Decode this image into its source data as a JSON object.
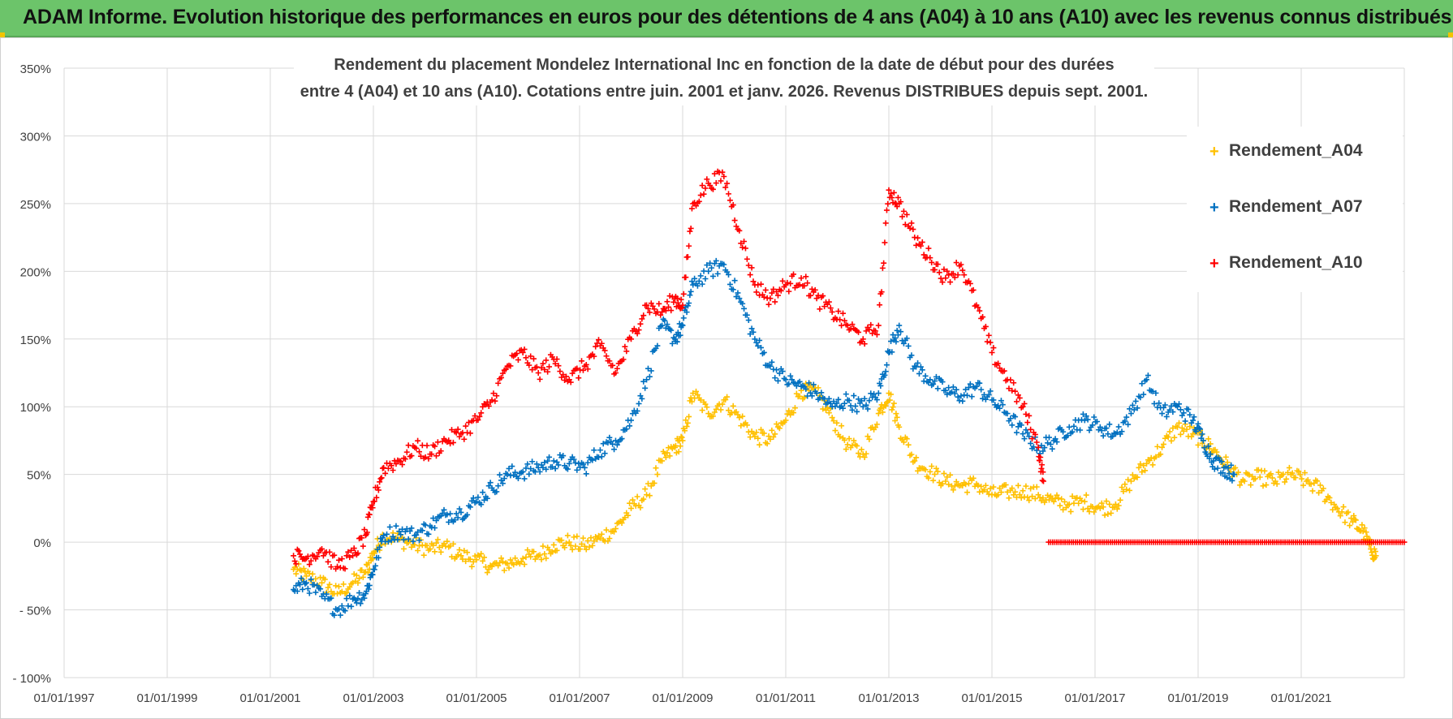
{
  "header": {
    "banner_title": "ADAM Informe. Evolution historique des performances en euros pour des détentions de 4 ans (A04) à 10 ans (A10) avec les revenus connus distribués"
  },
  "colors": {
    "banner_bg": "#6cc46a",
    "a04": "#FFC000",
    "a07": "#0070C0",
    "a10": "#FF0000",
    "grid": "#d9d9d9",
    "axis_text": "#404040"
  },
  "chart_data": {
    "type": "scatter",
    "title_line1": "Rendement du placement Mondelez International Inc en fonction de la date de début pour des durées",
    "title_line2": "entre 4 (A04) et 10 ans (A10).  Cotations entre juin. 2001 et janv. 2026. Revenus DISTRIBUES depuis sept. 2001.",
    "xlabel": "",
    "ylabel": "",
    "x_tick_labels": [
      "01/01/1997",
      "01/01/1999",
      "01/01/2001",
      "01/01/2003",
      "01/01/2005",
      "01/01/2007",
      "01/01/2009",
      "01/01/2011",
      "01/01/2013",
      "01/01/2015",
      "01/01/2017",
      "01/01/2019",
      "01/01/2021"
    ],
    "x_tick_years": [
      1997,
      1999,
      2001,
      2003,
      2005,
      2007,
      2009,
      2011,
      2013,
      2015,
      2017,
      2019,
      2021
    ],
    "xlim": [
      1997.0,
      2023.0
    ],
    "y_tick_labels": [
      "- 100%",
      "- 50%",
      "0%",
      "50%",
      "100%",
      "150%",
      "200%",
      "250%",
      "300%",
      "350%"
    ],
    "y_tick_values": [
      -100,
      -50,
      0,
      50,
      100,
      150,
      200,
      250,
      300,
      350
    ],
    "ylim": [
      -100,
      350
    ],
    "legend_position": "top-right",
    "grid": true,
    "series": [
      {
        "name": "Rendement_A04",
        "key": "a04",
        "points": [
          [
            2001.45,
            -20
          ],
          [
            2001.7,
            -25
          ],
          [
            2002.0,
            -30
          ],
          [
            2002.3,
            -38
          ],
          [
            2002.6,
            -30
          ],
          [
            2002.85,
            -22
          ],
          [
            2003.0,
            -8
          ],
          [
            2003.2,
            5
          ],
          [
            2003.5,
            2
          ],
          [
            2003.8,
            -2
          ],
          [
            2004.1,
            -5
          ],
          [
            2004.4,
            -3
          ],
          [
            2004.7,
            -10
          ],
          [
            2005.0,
            -13
          ],
          [
            2005.3,
            -18
          ],
          [
            2005.6,
            -16
          ],
          [
            2005.9,
            -12
          ],
          [
            2006.2,
            -10
          ],
          [
            2006.5,
            -2
          ],
          [
            2006.8,
            0
          ],
          [
            2007.1,
            -3
          ],
          [
            2007.4,
            3
          ],
          [
            2007.7,
            10
          ],
          [
            2008.0,
            25
          ],
          [
            2008.3,
            35
          ],
          [
            2008.6,
            60
          ],
          [
            2008.85,
            70
          ],
          [
            2009.0,
            75
          ],
          [
            2009.2,
            110
          ],
          [
            2009.5,
            95
          ],
          [
            2009.8,
            105
          ],
          [
            2010.1,
            92
          ],
          [
            2010.4,
            78
          ],
          [
            2010.7,
            76
          ],
          [
            2011.0,
            90
          ],
          [
            2011.3,
            112
          ],
          [
            2011.6,
            110
          ],
          [
            2011.9,
            92
          ],
          [
            2012.2,
            72
          ],
          [
            2012.5,
            65
          ],
          [
            2012.8,
            95
          ],
          [
            2013.0,
            110
          ],
          [
            2013.2,
            85
          ],
          [
            2013.5,
            60
          ],
          [
            2013.8,
            52
          ],
          [
            2014.1,
            45
          ],
          [
            2014.4,
            42
          ],
          [
            2014.7,
            43
          ],
          [
            2015.0,
            35
          ],
          [
            2015.3,
            37
          ],
          [
            2015.6,
            38
          ],
          [
            2015.9,
            35
          ],
          [
            2016.2,
            30
          ],
          [
            2016.5,
            28
          ],
          [
            2016.8,
            30
          ],
          [
            2017.1,
            25
          ],
          [
            2017.4,
            28
          ],
          [
            2017.7,
            45
          ],
          [
            2018.0,
            58
          ],
          [
            2018.3,
            70
          ],
          [
            2018.6,
            85
          ],
          [
            2018.9,
            80
          ],
          [
            2019.1,
            75
          ],
          [
            2019.3,
            68
          ],
          [
            2019.6,
            55
          ],
          [
            2019.9,
            45
          ],
          [
            2020.2,
            48
          ],
          [
            2020.5,
            45
          ],
          [
            2020.8,
            50
          ],
          [
            2021.1,
            45
          ],
          [
            2021.4,
            38
          ],
          [
            2021.7,
            25
          ],
          [
            2022.0,
            15
          ],
          [
            2022.2,
            8
          ],
          [
            2022.35,
            -5
          ],
          [
            2022.45,
            -10
          ]
        ]
      },
      {
        "name": "Rendement_A07",
        "key": "a07",
        "points": [
          [
            2001.45,
            -35
          ],
          [
            2001.7,
            -30
          ],
          [
            2002.0,
            -40
          ],
          [
            2002.3,
            -50
          ],
          [
            2002.6,
            -42
          ],
          [
            2002.85,
            -38
          ],
          [
            2003.0,
            -20
          ],
          [
            2003.2,
            5
          ],
          [
            2003.5,
            8
          ],
          [
            2003.8,
            5
          ],
          [
            2004.1,
            12
          ],
          [
            2004.4,
            20
          ],
          [
            2004.7,
            22
          ],
          [
            2005.0,
            30
          ],
          [
            2005.3,
            40
          ],
          [
            2005.6,
            50
          ],
          [
            2005.9,
            52
          ],
          [
            2006.2,
            55
          ],
          [
            2006.5,
            60
          ],
          [
            2006.8,
            58
          ],
          [
            2007.1,
            55
          ],
          [
            2007.4,
            68
          ],
          [
            2007.7,
            75
          ],
          [
            2008.0,
            90
          ],
          [
            2008.3,
            120
          ],
          [
            2008.6,
            160
          ],
          [
            2008.85,
            150
          ],
          [
            2009.0,
            160
          ],
          [
            2009.2,
            190
          ],
          [
            2009.5,
            200
          ],
          [
            2009.8,
            205
          ],
          [
            2010.1,
            180
          ],
          [
            2010.4,
            150
          ],
          [
            2010.7,
            130
          ],
          [
            2011.0,
            120
          ],
          [
            2011.3,
            115
          ],
          [
            2011.6,
            110
          ],
          [
            2011.9,
            100
          ],
          [
            2012.2,
            105
          ],
          [
            2012.5,
            100
          ],
          [
            2012.8,
            110
          ],
          [
            2013.0,
            140
          ],
          [
            2013.2,
            160
          ],
          [
            2013.5,
            130
          ],
          [
            2013.8,
            120
          ],
          [
            2014.1,
            112
          ],
          [
            2014.4,
            108
          ],
          [
            2014.7,
            115
          ],
          [
            2015.0,
            105
          ],
          [
            2015.3,
            95
          ],
          [
            2015.6,
            80
          ],
          [
            2015.9,
            70
          ],
          [
            2016.2,
            75
          ],
          [
            2016.5,
            85
          ],
          [
            2016.8,
            90
          ],
          [
            2017.1,
            85
          ],
          [
            2017.4,
            80
          ],
          [
            2017.7,
            95
          ],
          [
            2018.0,
            120
          ],
          [
            2018.3,
            95
          ],
          [
            2018.6,
            100
          ],
          [
            2018.9,
            90
          ],
          [
            2019.1,
            75
          ],
          [
            2019.3,
            60
          ],
          [
            2019.5,
            55
          ],
          [
            2019.7,
            50
          ]
        ]
      },
      {
        "name": "Rendement_A10",
        "key": "a10",
        "points": [
          [
            2001.45,
            -10
          ],
          [
            2001.7,
            -12
          ],
          [
            2002.0,
            -5
          ],
          [
            2002.3,
            -18
          ],
          [
            2002.6,
            -10
          ],
          [
            2002.85,
            5
          ],
          [
            2003.0,
            30
          ],
          [
            2003.2,
            55
          ],
          [
            2003.5,
            60
          ],
          [
            2003.8,
            70
          ],
          [
            2004.1,
            65
          ],
          [
            2004.4,
            75
          ],
          [
            2004.7,
            80
          ],
          [
            2005.0,
            90
          ],
          [
            2005.3,
            105
          ],
          [
            2005.6,
            130
          ],
          [
            2005.9,
            140
          ],
          [
            2006.2,
            125
          ],
          [
            2006.5,
            135
          ],
          [
            2006.8,
            120
          ],
          [
            2007.1,
            130
          ],
          [
            2007.4,
            145
          ],
          [
            2007.7,
            125
          ],
          [
            2008.0,
            150
          ],
          [
            2008.3,
            175
          ],
          [
            2008.6,
            170
          ],
          [
            2008.85,
            180
          ],
          [
            2009.0,
            175
          ],
          [
            2009.2,
            250
          ],
          [
            2009.5,
            265
          ],
          [
            2009.8,
            270
          ],
          [
            2010.1,
            230
          ],
          [
            2010.4,
            190
          ],
          [
            2010.7,
            180
          ],
          [
            2011.0,
            190
          ],
          [
            2011.3,
            195
          ],
          [
            2011.6,
            180
          ],
          [
            2011.9,
            170
          ],
          [
            2012.2,
            160
          ],
          [
            2012.5,
            150
          ],
          [
            2012.8,
            160
          ],
          [
            2013.0,
            260
          ],
          [
            2013.2,
            250
          ],
          [
            2013.5,
            225
          ],
          [
            2013.8,
            210
          ],
          [
            2014.1,
            195
          ],
          [
            2014.4,
            205
          ],
          [
            2014.7,
            175
          ],
          [
            2015.0,
            140
          ],
          [
            2015.3,
            120
          ],
          [
            2015.6,
            100
          ],
          [
            2015.9,
            70
          ],
          [
            2016.0,
            45
          ]
        ],
        "flat_segment": {
          "from": 2016.1,
          "to": 2023.0,
          "value": 0
        }
      }
    ]
  }
}
